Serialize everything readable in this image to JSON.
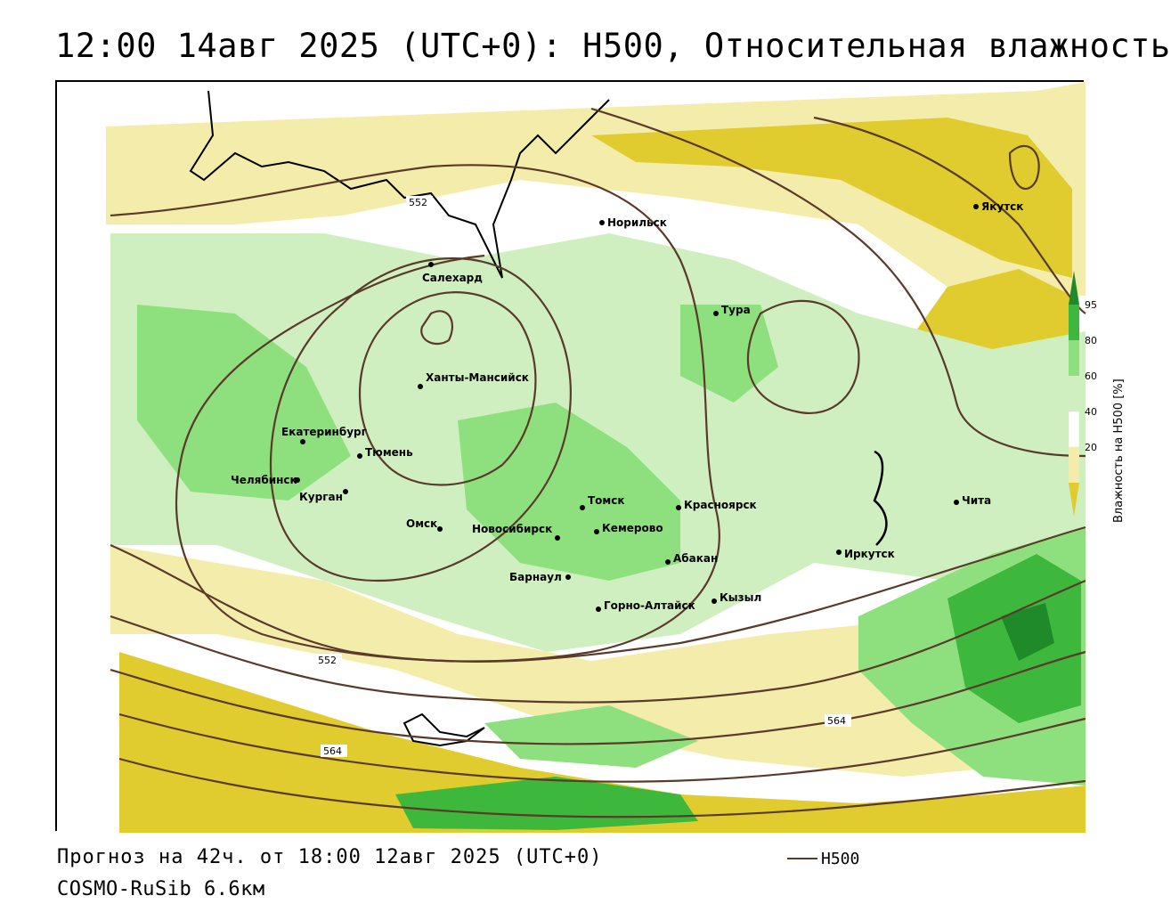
{
  "header": {
    "title": "12:00 14авг 2025 (UTC+0): H500, Относительная влажность"
  },
  "map": {
    "cities": [
      {
        "name": "Норильск"
      },
      {
        "name": "Якутск"
      },
      {
        "name": "Салехард"
      },
      {
        "name": "Тура"
      },
      {
        "name": "Ханты-Мансийск"
      },
      {
        "name": "Екатеринбург"
      },
      {
        "name": "Тюмень"
      },
      {
        "name": "Челябинск"
      },
      {
        "name": "Курган"
      },
      {
        "name": "Омск"
      },
      {
        "name": "Новосибирск"
      },
      {
        "name": "Томск"
      },
      {
        "name": "Кемерово"
      },
      {
        "name": "Красноярск"
      },
      {
        "name": "Барнаул"
      },
      {
        "name": "Абакан"
      },
      {
        "name": "Иркутск"
      },
      {
        "name": "Чита"
      },
      {
        "name": "Горно-Алтайск"
      },
      {
        "name": "Кызыл"
      }
    ],
    "contour_labels": [
      "552",
      "552",
      "564",
      "564"
    ],
    "colors": {
      "dry_dark": "#e0cc2e",
      "dry_light": "#f4ecaa",
      "moist_light": "#cfefc0",
      "moist_mid": "#8ee07e",
      "moist_high": "#3db83d",
      "moist_max": "#1f8a2a",
      "contour": "#5a3a2a"
    }
  },
  "colorbar": {
    "title": "Влажность на H500 [%]",
    "ticks": [
      "95",
      "80",
      "60",
      "40",
      "20"
    ]
  },
  "footer": {
    "forecast": "Прогноз на 42ч. от 18:00 12авг 2025 (UTC+0)",
    "model": "COSMO-RuSib 6.6км",
    "legend_label": "H500"
  }
}
